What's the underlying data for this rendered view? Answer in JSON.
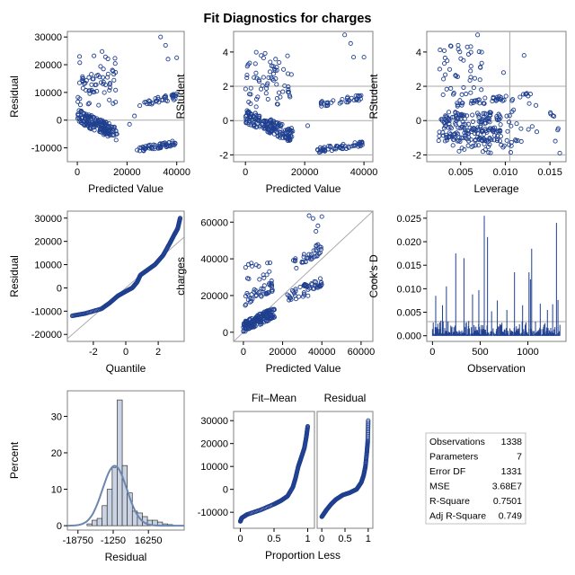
{
  "title": "Fit Diagnostics for charges",
  "colors": {
    "marker": "#1f3f8f",
    "ref": "#aaaaaa",
    "frame": "#808080",
    "hist_fill": "#c9d3e3",
    "density": "#6c86b0"
  },
  "chart_data": [
    {
      "id": "res_pred",
      "type": "scatter",
      "xlabel": "Predicted Value",
      "ylabel": "Residual",
      "xlim": [
        -4000,
        43000
      ],
      "ylim": [
        -15000,
        32000
      ],
      "xticks": [
        0,
        20000,
        40000
      ],
      "yticks": [
        -10000,
        0,
        10000,
        20000,
        30000
      ],
      "xtick_labels": [
        "0",
        "20000",
        "40000"
      ],
      "yticks_labels": [
        "-10000",
        "0",
        "10000",
        "20000",
        "30000"
      ],
      "hlines": [
        0
      ],
      "clusters": [
        {
          "n": 160,
          "x": [
            0,
            16000
          ],
          "y": [
            -7500,
            3500
          ],
          "trend": "down"
        },
        {
          "n": 26,
          "x": [
            500,
            15500
          ],
          "y": [
            12000,
            25000
          ],
          "trend": "none"
        },
        {
          "n": 40,
          "x": [
            0,
            16000
          ],
          "y": [
            5000,
            17000
          ],
          "trend": "none"
        },
        {
          "n": 55,
          "x": [
            24000,
            40000
          ],
          "y": [
            -11500,
            -7500
          ],
          "trend": "up"
        },
        {
          "n": 35,
          "x": [
            25000,
            40000
          ],
          "y": [
            4500,
            9500
          ],
          "trend": "up"
        }
      ],
      "outliers": [
        [
          33500,
          30000
        ],
        [
          35500,
          27000
        ],
        [
          36500,
          22000
        ],
        [
          40000,
          22500
        ],
        [
          38000,
          9000
        ],
        [
          21000,
          -1500
        ],
        [
          23000,
          1500
        ]
      ]
    },
    {
      "id": "rstud_pred",
      "type": "scatter",
      "xlabel": "Predicted Value",
      "ylabel": "RStudent",
      "xlim": [
        -4000,
        43000
      ],
      "ylim": [
        -2.4,
        5.2
      ],
      "xticks": [
        0,
        20000,
        40000
      ],
      "yticks": [
        -2,
        0,
        2,
        4
      ],
      "xtick_labels": [
        "0",
        "20000",
        "40000"
      ],
      "yticks_labels": [
        "-2",
        "0",
        "2",
        "4"
      ],
      "hlines": [
        -2,
        0,
        2
      ],
      "clusters": [
        {
          "n": 160,
          "x": [
            0,
            16000
          ],
          "y": [
            -1.3,
            0.6
          ],
          "trend": "down"
        },
        {
          "n": 26,
          "x": [
            500,
            15500
          ],
          "y": [
            2.0,
            4.1
          ],
          "trend": "none"
        },
        {
          "n": 40,
          "x": [
            0,
            16000
          ],
          "y": [
            0.8,
            2.8
          ],
          "trend": "none"
        },
        {
          "n": 55,
          "x": [
            24000,
            40000
          ],
          "y": [
            -1.9,
            -1.2
          ],
          "trend": "up"
        },
        {
          "n": 35,
          "x": [
            25000,
            40000
          ],
          "y": [
            0.8,
            1.5
          ],
          "trend": "up"
        }
      ],
      "outliers": [
        [
          33500,
          5.0
        ],
        [
          35500,
          4.5
        ],
        [
          36500,
          3.7
        ],
        [
          40000,
          3.7
        ],
        [
          21000,
          -0.3
        ]
      ]
    },
    {
      "id": "rstud_lev",
      "type": "scatter",
      "xlabel": "Leverage",
      "ylabel": "RStudent",
      "xlim": [
        0.0012,
        0.0168
      ],
      "ylim": [
        -2.4,
        5.2
      ],
      "xticks": [
        0.005,
        0.01,
        0.015
      ],
      "yticks": [
        -2,
        0,
        2,
        4
      ],
      "xtick_labels": [
        "0.005",
        "0.010",
        "0.015"
      ],
      "yticks_labels": [
        "-2",
        "0",
        "2",
        "4"
      ],
      "hlines": [
        -2,
        0,
        2
      ],
      "vlines": [
        0.0105
      ],
      "clusters": [
        {
          "n": 190,
          "x": [
            0.0025,
            0.0095
          ],
          "y": [
            -1.2,
            0.5
          ],
          "trend": "none"
        },
        {
          "n": 45,
          "x": [
            0.0025,
            0.0075
          ],
          "y": [
            1.5,
            4.5
          ],
          "trend": "none"
        },
        {
          "n": 45,
          "x": [
            0.0045,
            0.013
          ],
          "y": [
            0.8,
            1.6
          ],
          "trend": "up"
        },
        {
          "n": 35,
          "x": [
            0.004,
            0.012
          ],
          "y": [
            -1.9,
            -1.0
          ],
          "trend": "none"
        },
        {
          "n": 20,
          "x": [
            0.01,
            0.016
          ],
          "y": [
            -1.0,
            1.0
          ],
          "trend": "none"
        }
      ],
      "outliers": [
        [
          0.0069,
          5.0
        ],
        [
          0.0121,
          3.8
        ],
        [
          0.0156,
          -1.2
        ],
        [
          0.0161,
          -1.9
        ],
        [
          0.0098,
          2.8
        ]
      ]
    },
    {
      "id": "qq",
      "type": "scatter",
      "xlabel": "Quantile",
      "ylabel": "Residual",
      "xlim": [
        -3.6,
        3.6
      ],
      "ylim": [
        -23000,
        33000
      ],
      "xticks": [
        -2,
        0,
        2
      ],
      "yticks": [
        -20000,
        -10000,
        0,
        10000,
        20000,
        30000
      ],
      "xtick_labels": [
        "-2",
        "0",
        "2"
      ],
      "yticks_labels": [
        "-20000",
        "-10000",
        "0",
        "10000",
        "20000",
        "30000"
      ],
      "refline": {
        "slope": 6070,
        "intercept": 0
      },
      "curve": [
        [
          -3.3,
          -12000
        ],
        [
          -2.5,
          -11000
        ],
        [
          -1.5,
          -9000
        ],
        [
          -1.0,
          -6500
        ],
        [
          -0.5,
          -3500
        ],
        [
          0,
          -1500
        ],
        [
          0.4,
          0
        ],
        [
          0.7,
          2500
        ],
        [
          0.9,
          5500
        ],
        [
          1.3,
          7500
        ],
        [
          1.8,
          10000
        ],
        [
          2.3,
          14000
        ],
        [
          2.7,
          19000
        ],
        [
          3.0,
          23000
        ],
        [
          3.2,
          25500
        ],
        [
          3.35,
          30000
        ]
      ]
    },
    {
      "id": "obs_pred",
      "type": "scatter",
      "xlabel": "Predicted Value",
      "ylabel": "charges",
      "xlim": [
        -5000,
        66000
      ],
      "ylim": [
        -5000,
        66000
      ],
      "xticks": [
        0,
        20000,
        40000,
        60000
      ],
      "yticks": [
        0,
        20000,
        40000,
        60000
      ],
      "xtick_labels": [
        "0",
        "20000",
        "40000",
        "60000"
      ],
      "yticks_labels": [
        "0",
        "20000",
        "40000",
        "60000"
      ],
      "refline": {
        "slope": 1,
        "intercept": 0
      },
      "clusters": [
        {
          "n": 160,
          "x": [
            0,
            16000
          ],
          "y": [
            0,
            13000
          ],
          "trend": "up"
        },
        {
          "n": 40,
          "x": [
            0,
            15000
          ],
          "y": [
            14000,
            28000
          ],
          "trend": "up"
        },
        {
          "n": 15,
          "x": [
            1000,
            14000
          ],
          "y": [
            28000,
            38000
          ],
          "trend": "none"
        },
        {
          "n": 50,
          "x": [
            22000,
            40000
          ],
          "y": [
            14000,
            30000
          ],
          "trend": "up"
        },
        {
          "n": 35,
          "x": [
            25000,
            40000
          ],
          "y": [
            33000,
            49000
          ],
          "trend": "up"
        }
      ],
      "outliers": [
        [
          33500,
          63500
        ],
        [
          35500,
          62000
        ],
        [
          38000,
          58000
        ],
        [
          40000,
          63000
        ],
        [
          37000,
          55000
        ]
      ]
    },
    {
      "id": "cooks",
      "type": "needle",
      "xlabel": "Observation",
      "ylabel": "Cook's D",
      "xlim": [
        -60,
        1400
      ],
      "ylim": [
        -0.0012,
        0.0265
      ],
      "xticks": [
        0,
        500,
        1000
      ],
      "yticks": [
        0,
        0.005,
        0.01,
        0.015,
        0.02,
        0.025
      ],
      "xtick_labels": [
        "0",
        "500",
        "1000"
      ],
      "yticks_labels": [
        "0.000",
        "0.005",
        "0.010",
        "0.015",
        "0.020",
        "0.025"
      ],
      "hlines": [
        0.003
      ],
      "n": 1338,
      "base_max": 0.0035,
      "spikes": [
        [
          543,
          0.0255
        ],
        [
          1300,
          0.024
        ],
        [
          577,
          0.021
        ],
        [
          1040,
          0.0185
        ],
        [
          244,
          0.0175
        ],
        [
          1012,
          0.0135
        ],
        [
          330,
          0.0165
        ],
        [
          860,
          0.0135
        ],
        [
          1027,
          0.012
        ],
        [
          146,
          0.0105
        ],
        [
          486,
          0.0097
        ],
        [
          34,
          0.0085
        ],
        [
          420,
          0.0088
        ],
        [
          105,
          0.0065
        ],
        [
          680,
          0.0075
        ],
        [
          945,
          0.0065
        ],
        [
          1130,
          0.0068
        ],
        [
          1205,
          0.0055
        ],
        [
          1260,
          0.0067
        ],
        [
          1316,
          0.0076
        ],
        [
          780,
          0.0055
        ],
        [
          620,
          0.0052
        ]
      ]
    },
    {
      "id": "hist",
      "type": "histogram",
      "xlabel": "Residual",
      "ylabel": "Percent",
      "xlim": [
        -24000,
        34000
      ],
      "ylim": [
        -1.2,
        37
      ],
      "xticks": [
        -18750,
        -1250,
        16250
      ],
      "yticks": [
        0,
        10,
        20,
        30
      ],
      "xtick_labels": [
        "-18750",
        "-1250",
        "16250"
      ],
      "yticks_labels": [
        "0",
        "10",
        "20",
        "30"
      ],
      "bin_start": -14250,
      "bin_width": 2500,
      "percents": [
        0.5,
        1.5,
        2.0,
        5.5,
        10.0,
        16.0,
        34.5,
        16.5,
        9.0,
        4.0,
        3.5,
        2.5,
        1.5,
        1.5,
        1.0,
        0.5,
        0.3
      ],
      "density": {
        "mean": -500,
        "sd": 6070,
        "scale": 2500
      }
    },
    {
      "id": "rf",
      "type": "rf-plot",
      "xlabel": "Proportion Less",
      "panels": [
        "Fit–Mean",
        "Residual"
      ],
      "xlim": [
        -0.1,
        1.1
      ],
      "ylim": [
        -17000,
        34000
      ],
      "xticks": [
        0,
        0.5,
        1
      ],
      "yticks": [
        -10000,
        0,
        10000,
        20000,
        30000
      ],
      "xtick_labels": [
        "0",
        "0.5",
        "1"
      ],
      "yticks_labels": [
        "-10000",
        "0",
        "10000",
        "20000",
        "30000"
      ],
      "fitmean": [
        [
          0,
          -14000
        ],
        [
          0.02,
          -12500
        ],
        [
          0.1,
          -11000
        ],
        [
          0.3,
          -9000
        ],
        [
          0.5,
          -6500
        ],
        [
          0.6,
          -5000
        ],
        [
          0.7,
          -3000
        ],
        [
          0.78,
          1000
        ],
        [
          0.82,
          5000
        ],
        [
          0.86,
          10000
        ],
        [
          0.9,
          13500
        ],
        [
          0.95,
          18000
        ],
        [
          0.98,
          23000
        ],
        [
          1.0,
          27500
        ]
      ],
      "residual": [
        [
          0,
          -12000
        ],
        [
          0.05,
          -10500
        ],
        [
          0.1,
          -9000
        ],
        [
          0.2,
          -6500
        ],
        [
          0.3,
          -4500
        ],
        [
          0.45,
          -2500
        ],
        [
          0.6,
          -1500
        ],
        [
          0.75,
          0
        ],
        [
          0.85,
          3000
        ],
        [
          0.9,
          6000
        ],
        [
          0.94,
          10000
        ],
        [
          0.97,
          16000
        ],
        [
          0.99,
          21000
        ],
        [
          1.0,
          30000
        ]
      ]
    }
  ],
  "stats_table": {
    "rows": [
      {
        "label": "Observations",
        "value": "1338"
      },
      {
        "label": "Parameters",
        "value": "7"
      },
      {
        "label": "Error DF",
        "value": "1331"
      },
      {
        "label": "MSE",
        "value": "3.68E7"
      },
      {
        "label": "R-Square",
        "value": "0.7501"
      },
      {
        "label": "Adj R-Square",
        "value": "0.749"
      }
    ]
  }
}
